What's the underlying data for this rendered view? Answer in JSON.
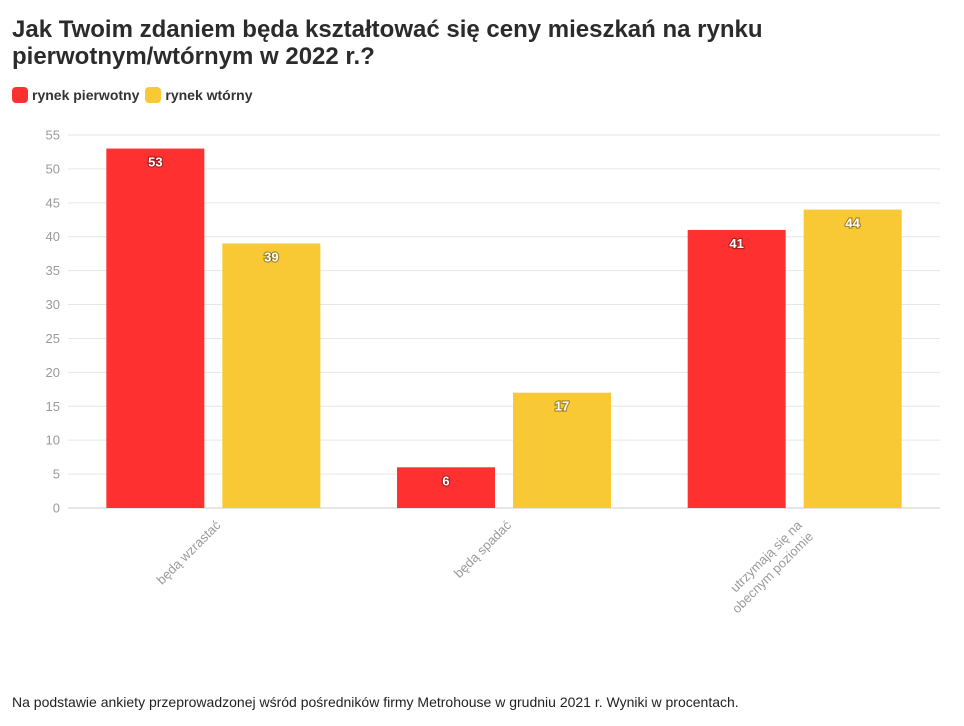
{
  "colors": {
    "primary": "#ff3030",
    "secondary": "#f8c935",
    "grid": "#e6e6e6",
    "axis": "#cccccc",
    "tick": "#999999"
  },
  "chart_data": {
    "type": "bar",
    "title": "Jak Twoim zdaniem będa kształtować się ceny mieszkań na rynku pierwotnym/wtórnym w 2022 r.?",
    "xlabel": "",
    "ylabel": "",
    "ylim": [
      0,
      55
    ],
    "yticks": [
      0,
      5,
      10,
      15,
      20,
      25,
      30,
      35,
      40,
      45,
      50,
      55
    ],
    "categories": [
      "będą wzrastać",
      "będą spadać",
      "utrzymają się na obecnym poziomie"
    ],
    "series": [
      {
        "name": "rynek pierwotny",
        "values": [
          53,
          6,
          41
        ]
      },
      {
        "name": "rynek wtórny",
        "values": [
          39,
          17,
          44
        ]
      }
    ],
    "grid": true,
    "legend": "top-left",
    "data_labels": true
  },
  "footnote": "Na podstawie ankiety przeprowadzonej wśród pośredników firmy Metrohouse w grudniu 2021 r. Wyniki w procentach."
}
